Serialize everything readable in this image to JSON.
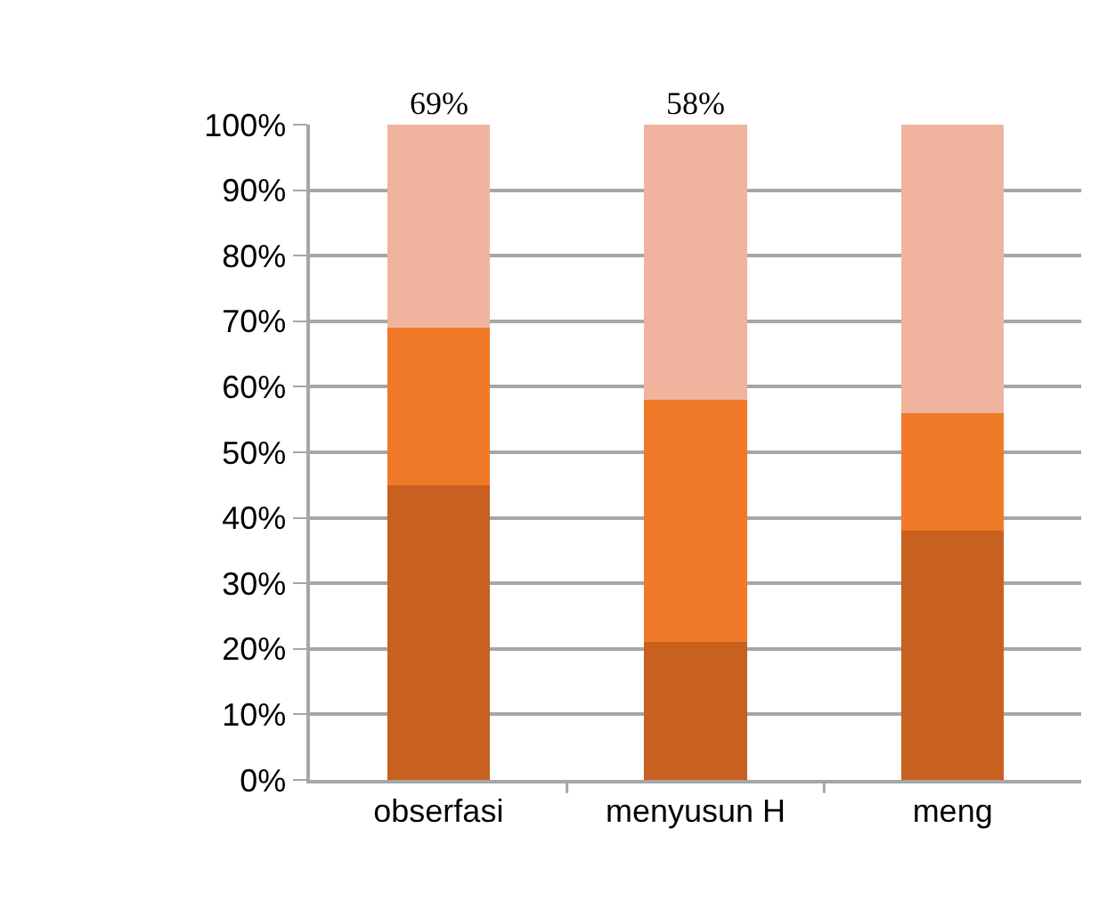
{
  "chart_data": {
    "type": "bar",
    "stacked": true,
    "categories": [
      "obserfasi",
      "menyusun H",
      "meng"
    ],
    "series": [
      {
        "color": "#c8601f",
        "values": [
          45,
          21,
          38
        ]
      },
      {
        "color": "#f07a28",
        "values": [
          24,
          37,
          18
        ]
      },
      {
        "color": "#f0b49e",
        "values": [
          31,
          42,
          44
        ]
      }
    ],
    "ylim": [
      0,
      100
    ],
    "yticks": [
      {
        "value": 0,
        "label": "0%"
      },
      {
        "value": 10,
        "label": "10%"
      },
      {
        "value": 20,
        "label": "20%"
      },
      {
        "value": 30,
        "label": "30%"
      },
      {
        "value": 40,
        "label": "40%"
      },
      {
        "value": 50,
        "label": "50%"
      },
      {
        "value": 60,
        "label": "60%"
      },
      {
        "value": 70,
        "label": "70%"
      },
      {
        "value": 80,
        "label": "80%"
      },
      {
        "value": 90,
        "label": "90%"
      },
      {
        "value": 100,
        "label": "100%"
      }
    ],
    "annotations": [
      {
        "text": "69%",
        "x": "obserfasi",
        "y": 100
      },
      {
        "text": "58%",
        "x": "menyusun H",
        "y": 100
      }
    ],
    "grid": "y"
  }
}
